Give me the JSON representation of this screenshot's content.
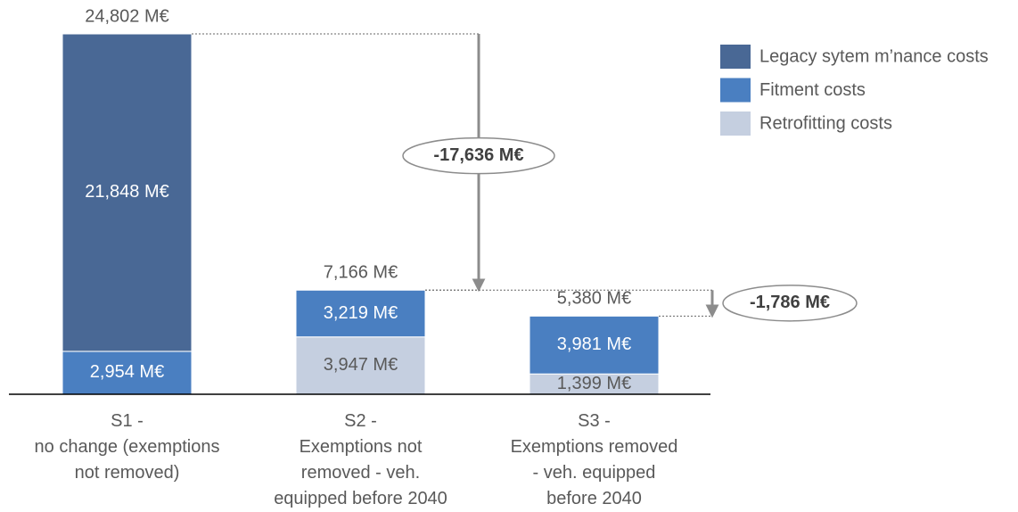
{
  "chart_data": {
    "type": "stacked-bar",
    "categories": [
      "S1 -\nno change (exemptions\nnot removed)",
      "S2 -\nExemptions not\nremoved - veh.\nequipped before 2040",
      "S3 -\nExemptions removed\n- veh. equipped\nbefore 2040"
    ],
    "series": [
      {
        "name": "Retrofitting costs",
        "color": "#c5cfe0",
        "label_color": "#595959",
        "values": [
          null,
          3947,
          1399
        ],
        "value_labels": [
          null,
          "3,947 M€",
          "1,399 M€"
        ]
      },
      {
        "name": "Fitment costs",
        "color": "#4a7fc1",
        "label_color": "#ffffff",
        "values": [
          2954,
          3219,
          3981
        ],
        "value_labels": [
          "2,954 M€",
          "3,219 M€",
          "3,981 M€"
        ]
      },
      {
        "name": "Legacy sytem m’nance costs",
        "color": "#496895",
        "label_color": "#ffffff",
        "values": [
          21848,
          null,
          null
        ],
        "value_labels": [
          "21,848 M€",
          null,
          null
        ]
      }
    ],
    "totals": {
      "values": [
        24802,
        7166,
        5380
      ],
      "value_labels": [
        "24,802 M€",
        "7,166 M€",
        "5,380 M€"
      ]
    },
    "differences": [
      {
        "value": -17636,
        "label": "-17,636 M€"
      },
      {
        "value": -1786,
        "label": "-1,786 M€"
      }
    ]
  }
}
